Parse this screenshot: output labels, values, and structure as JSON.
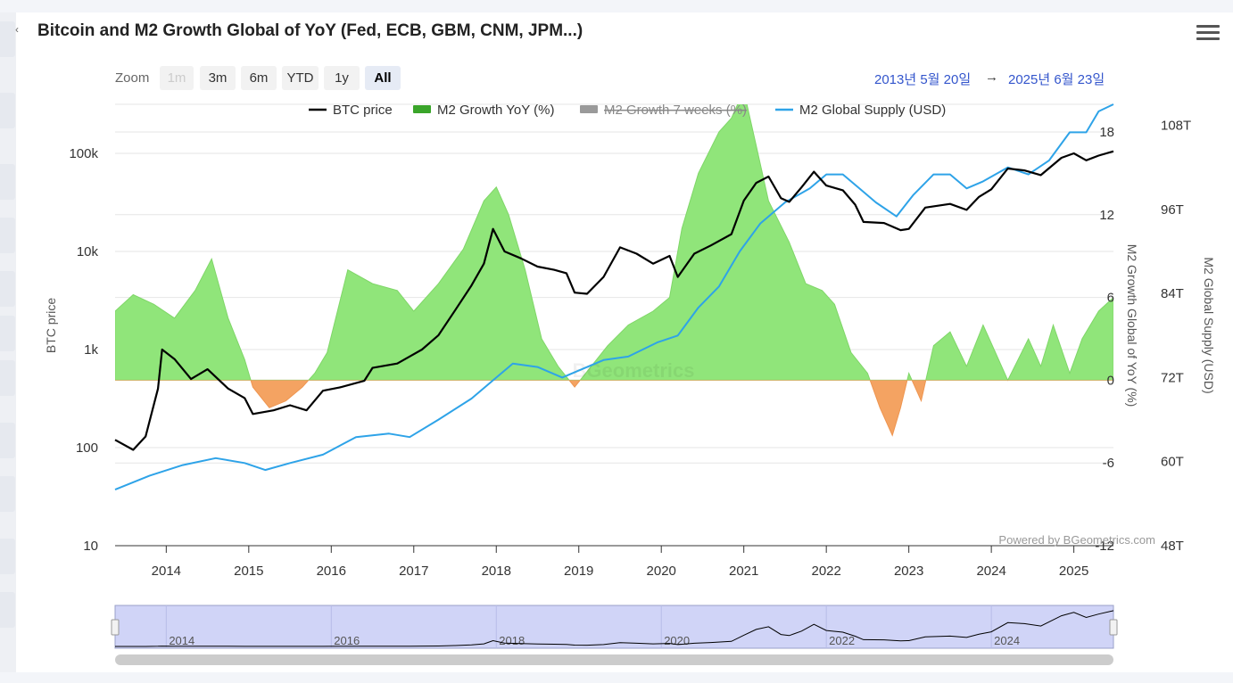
{
  "title": "Bitcoin and M2 Growth Global of YoY (Fed, ECB, GBM, CNM, JPM...)",
  "zoom": {
    "label": "Zoom",
    "buttons": [
      "1m",
      "3m",
      "6m",
      "YTD",
      "1y",
      "All"
    ],
    "active": "All",
    "disabled": [
      "1m"
    ]
  },
  "range": {
    "from": "2013년 5월 20일",
    "arrow": "→",
    "to": "2025년 6월 23일"
  },
  "credit": "Powered by BGeometrics.com",
  "watermark": "BGeometrics",
  "colors": {
    "btc": "#000000",
    "m2_positive": "#90e57a",
    "m2_negative": "#f4a362",
    "m2_supply": "#2ea3e8",
    "range_link": "#3355cc",
    "navigator": "#d0d4f7"
  },
  "chart_data": {
    "type": "line",
    "legend": [
      "BTC price",
      "M2 Growth YoY (%)",
      "M2 Growth 7 weeks (%)",
      "M2 Global Supply (USD)"
    ],
    "legend_hidden": [
      "M2 Growth 7 weeks (%)"
    ],
    "legend_position": "top-center",
    "x_ticks": [
      "2014",
      "2015",
      "2016",
      "2017",
      "2018",
      "2019",
      "2020",
      "2021",
      "2022",
      "2023",
      "2024",
      "2025"
    ],
    "navigator_ticks": [
      "2014",
      "2016",
      "2018",
      "2020",
      "2022",
      "2024"
    ],
    "x_range": [
      2013.38,
      2025.48
    ],
    "axes": {
      "btc": {
        "label": "BTC price",
        "scale": "log",
        "ticks": [
          "10",
          "100",
          "1k",
          "10k",
          "100k"
        ],
        "range": [
          10,
          316228
        ]
      },
      "m2_yoy": {
        "label": "M2 Growth Global of YoY (%)",
        "ticks": [
          "-12",
          "-6",
          "0",
          "6",
          "12",
          "18"
        ],
        "range": [
          -12,
          20
        ]
      },
      "m2_supply": {
        "label": "M2 Global Supply (USD)",
        "ticks": [
          "48T",
          "60T",
          "72T",
          "84T",
          "96T",
          "108T"
        ],
        "range": [
          48,
          111
        ]
      }
    },
    "grid": true,
    "series": [
      {
        "name": "BTC price",
        "axis": "btc",
        "points": [
          [
            2013.38,
            120
          ],
          [
            2013.6,
            95
          ],
          [
            2013.75,
            130
          ],
          [
            2013.9,
            400
          ],
          [
            2013.95,
            1000
          ],
          [
            2014.1,
            800
          ],
          [
            2014.3,
            500
          ],
          [
            2014.5,
            630
          ],
          [
            2014.75,
            400
          ],
          [
            2014.95,
            320
          ],
          [
            2015.05,
            220
          ],
          [
            2015.3,
            240
          ],
          [
            2015.5,
            270
          ],
          [
            2015.7,
            240
          ],
          [
            2015.9,
            380
          ],
          [
            2016.1,
            410
          ],
          [
            2016.4,
            480
          ],
          [
            2016.5,
            650
          ],
          [
            2016.8,
            720
          ],
          [
            2016.95,
            850
          ],
          [
            2017.1,
            1000
          ],
          [
            2017.3,
            1400
          ],
          [
            2017.5,
            2500
          ],
          [
            2017.7,
            4500
          ],
          [
            2017.85,
            7500
          ],
          [
            2017.96,
            17000
          ],
          [
            2018.1,
            10000
          ],
          [
            2018.3,
            8500
          ],
          [
            2018.5,
            7000
          ],
          [
            2018.7,
            6500
          ],
          [
            2018.85,
            6000
          ],
          [
            2018.95,
            3800
          ],
          [
            2019.1,
            3700
          ],
          [
            2019.3,
            5500
          ],
          [
            2019.5,
            11000
          ],
          [
            2019.7,
            9500
          ],
          [
            2019.9,
            7500
          ],
          [
            2020.1,
            9000
          ],
          [
            2020.2,
            5500
          ],
          [
            2020.4,
            9500
          ],
          [
            2020.6,
            11500
          ],
          [
            2020.85,
            15000
          ],
          [
            2021.0,
            33000
          ],
          [
            2021.15,
            50000
          ],
          [
            2021.3,
            58000
          ],
          [
            2021.45,
            35000
          ],
          [
            2021.55,
            32000
          ],
          [
            2021.7,
            45000
          ],
          [
            2021.85,
            65000
          ],
          [
            2022.0,
            47000
          ],
          [
            2022.2,
            42000
          ],
          [
            2022.35,
            30000
          ],
          [
            2022.45,
            20000
          ],
          [
            2022.7,
            19500
          ],
          [
            2022.9,
            16500
          ],
          [
            2023.0,
            17000
          ],
          [
            2023.2,
            28000
          ],
          [
            2023.5,
            30500
          ],
          [
            2023.7,
            26500
          ],
          [
            2023.85,
            36000
          ],
          [
            2024.0,
            43000
          ],
          [
            2024.2,
            70000
          ],
          [
            2024.4,
            67000
          ],
          [
            2024.6,
            60000
          ],
          [
            2024.85,
            90000
          ],
          [
            2025.0,
            100000
          ],
          [
            2025.15,
            85000
          ],
          [
            2025.3,
            95000
          ],
          [
            2025.48,
            105000
          ]
        ]
      },
      {
        "name": "M2 Growth YoY (%)",
        "axis": "m2_yoy",
        "points": [
          [
            2013.38,
            5
          ],
          [
            2013.6,
            6.2
          ],
          [
            2013.85,
            5.5
          ],
          [
            2014.1,
            4.5
          ],
          [
            2014.35,
            6.5
          ],
          [
            2014.55,
            8.8
          ],
          [
            2014.75,
            4.5
          ],
          [
            2014.95,
            1.5
          ],
          [
            2015.05,
            -0.5
          ],
          [
            2015.25,
            -2
          ],
          [
            2015.45,
            -1.5
          ],
          [
            2015.65,
            -0.5
          ],
          [
            2015.8,
            0.5
          ],
          [
            2015.95,
            2
          ],
          [
            2016.2,
            8
          ],
          [
            2016.5,
            7
          ],
          [
            2016.8,
            6.5
          ],
          [
            2017.0,
            5
          ],
          [
            2017.3,
            7
          ],
          [
            2017.6,
            9.5
          ],
          [
            2017.85,
            13
          ],
          [
            2018.0,
            14
          ],
          [
            2018.15,
            12
          ],
          [
            2018.35,
            8
          ],
          [
            2018.55,
            3
          ],
          [
            2018.75,
            1
          ],
          [
            2018.95,
            -0.5
          ],
          [
            2019.15,
            1
          ],
          [
            2019.35,
            2.5
          ],
          [
            2019.6,
            4
          ],
          [
            2019.9,
            5
          ],
          [
            2020.1,
            6
          ],
          [
            2020.25,
            11
          ],
          [
            2020.45,
            15
          ],
          [
            2020.7,
            18
          ],
          [
            2020.85,
            19
          ],
          [
            2021.0,
            21
          ],
          [
            2021.15,
            17
          ],
          [
            2021.3,
            13
          ],
          [
            2021.55,
            10
          ],
          [
            2021.75,
            7
          ],
          [
            2021.95,
            6.5
          ],
          [
            2022.1,
            5.5
          ],
          [
            2022.3,
            2
          ],
          [
            2022.5,
            0.5
          ],
          [
            2022.65,
            -2
          ],
          [
            2022.8,
            -4
          ],
          [
            2022.9,
            -2
          ],
          [
            2023.0,
            0.5
          ],
          [
            2023.15,
            -1.5
          ],
          [
            2023.3,
            2.5
          ],
          [
            2023.5,
            3.5
          ],
          [
            2023.7,
            1
          ],
          [
            2023.9,
            4
          ],
          [
            2024.05,
            2
          ],
          [
            2024.2,
            0
          ],
          [
            2024.45,
            3
          ],
          [
            2024.6,
            1
          ],
          [
            2024.75,
            4
          ],
          [
            2024.95,
            0.5
          ],
          [
            2025.1,
            3
          ],
          [
            2025.3,
            5
          ],
          [
            2025.48,
            6
          ]
        ]
      },
      {
        "name": "M2 Global Supply (USD)",
        "axis": "m2_supply",
        "points": [
          [
            2013.38,
            56
          ],
          [
            2013.8,
            58
          ],
          [
            2014.2,
            59.5
          ],
          [
            2014.6,
            60.5
          ],
          [
            2014.95,
            59.8
          ],
          [
            2015.2,
            58.8
          ],
          [
            2015.5,
            59.8
          ],
          [
            2015.9,
            61
          ],
          [
            2016.3,
            63.5
          ],
          [
            2016.7,
            64
          ],
          [
            2016.95,
            63.5
          ],
          [
            2017.3,
            66
          ],
          [
            2017.7,
            69
          ],
          [
            2017.95,
            71.5
          ],
          [
            2018.2,
            74
          ],
          [
            2018.5,
            73.5
          ],
          [
            2018.8,
            72
          ],
          [
            2019.0,
            73
          ],
          [
            2019.3,
            74.5
          ],
          [
            2019.6,
            75
          ],
          [
            2019.95,
            77
          ],
          [
            2020.2,
            78
          ],
          [
            2020.45,
            82
          ],
          [
            2020.7,
            85
          ],
          [
            2020.95,
            90
          ],
          [
            2021.2,
            94
          ],
          [
            2021.5,
            97
          ],
          [
            2021.8,
            99
          ],
          [
            2022.0,
            101
          ],
          [
            2022.2,
            101
          ],
          [
            2022.4,
            99
          ],
          [
            2022.6,
            97
          ],
          [
            2022.85,
            95
          ],
          [
            2023.05,
            98
          ],
          [
            2023.3,
            101
          ],
          [
            2023.5,
            101
          ],
          [
            2023.7,
            99
          ],
          [
            2023.9,
            100
          ],
          [
            2024.2,
            102
          ],
          [
            2024.45,
            101
          ],
          [
            2024.7,
            103
          ],
          [
            2024.95,
            107
          ],
          [
            2025.15,
            107
          ],
          [
            2025.3,
            110
          ],
          [
            2025.48,
            111
          ]
        ]
      }
    ]
  }
}
